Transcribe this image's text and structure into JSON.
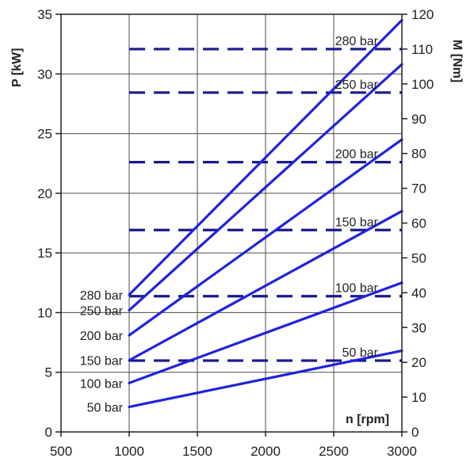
{
  "chart_data": {
    "type": "line",
    "xlabel": "n [rpm]",
    "ylabel": "P [kW]",
    "y2label": "M [Nm]",
    "xlim": [
      500,
      3000
    ],
    "ylim": [
      0,
      35
    ],
    "y2lim": [
      0,
      120
    ],
    "x_ticks": [
      500,
      1000,
      1500,
      2000,
      2500,
      3000
    ],
    "y_ticks": [
      0,
      5,
      10,
      15,
      20,
      25,
      30,
      35
    ],
    "y2_ticks": [
      0,
      10,
      20,
      30,
      40,
      50,
      60,
      70,
      80,
      90,
      100,
      110,
      120
    ],
    "grid": true,
    "colors": {
      "power": "#2222dd",
      "torque": "#1a1a8c"
    },
    "power_series": [
      {
        "name": "280 bar",
        "x": [
          1000,
          3000
        ],
        "y": [
          11.5,
          34.5
        ]
      },
      {
        "name": "250 bar",
        "x": [
          1000,
          3000
        ],
        "y": [
          10.2,
          30.8
        ]
      },
      {
        "name": "200 bar",
        "x": [
          1000,
          3000
        ],
        "y": [
          8.1,
          24.5
        ]
      },
      {
        "name": "150 bar",
        "x": [
          1000,
          3000
        ],
        "y": [
          6.0,
          18.5
        ]
      },
      {
        "name": "100 bar",
        "x": [
          1000,
          3000
        ],
        "y": [
          4.1,
          12.5
        ]
      },
      {
        "name": "50 bar",
        "x": [
          1000,
          3000
        ],
        "y": [
          2.1,
          6.8
        ]
      }
    ],
    "torque_series": [
      {
        "name": "280 bar",
        "x": [
          1000,
          3000
        ],
        "y": [
          110,
          110
        ]
      },
      {
        "name": "250 bar",
        "x": [
          1000,
          3000
        ],
        "y": [
          97.5,
          97.5
        ]
      },
      {
        "name": "200 bar",
        "x": [
          1000,
          3000
        ],
        "y": [
          77.5,
          77.5
        ]
      },
      {
        "name": "150 bar",
        "x": [
          1000,
          3000
        ],
        "y": [
          58,
          58
        ]
      },
      {
        "name": "100 bar",
        "x": [
          1000,
          3000
        ],
        "y": [
          39,
          39
        ]
      },
      {
        "name": "50 bar",
        "x": [
          1000,
          3000
        ],
        "y": [
          20.5,
          20.5
        ]
      }
    ]
  }
}
